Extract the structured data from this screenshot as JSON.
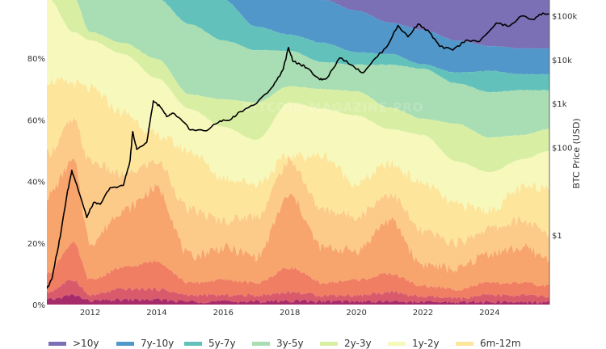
{
  "chart_data": {
    "type": "area",
    "title": "",
    "watermark": "BITCOIN MAGAZINE PRO",
    "x_ticks": [
      "2012",
      "2014",
      "2016",
      "2018",
      "2020",
      "2022",
      "2024"
    ],
    "x_tick_values": [
      2012,
      2014,
      2016,
      2018,
      2020,
      2022,
      2024
    ],
    "xlim": [
      2010.7,
      2025.8
    ],
    "y_left": {
      "ticks": [
        "0%",
        "20%",
        "40%",
        "60%",
        "80%"
      ],
      "tick_values": [
        0,
        20,
        40,
        60,
        80
      ],
      "ylim": [
        0,
        99
      ]
    },
    "y_right": {
      "label": "BTC Price (USD)",
      "scale": "log",
      "ticks": [
        "$1",
        "$100",
        "$1k",
        "$10k",
        "$100k"
      ],
      "tick_values": [
        1,
        100,
        1000,
        10000,
        100000
      ]
    },
    "legend": [
      {
        "label": ">10y",
        "color": "#7b6fb6"
      },
      {
        "label": "7y-10y",
        "color": "#5197c9"
      },
      {
        "label": "5y-7y",
        "color": "#62c2bb"
      },
      {
        "label": "3y-5y",
        "color": "#a9ddb3"
      },
      {
        "label": "2y-3y",
        "color": "#d8efa3"
      },
      {
        "label": "1y-2y",
        "color": "#f7f8bb"
      },
      {
        "label": "6m-12m",
        "color": "#fde69c"
      }
    ],
    "lower_band_colors": [
      "#fccb89",
      "#f8a56d",
      "#f07e63",
      "#d95b6b",
      "#a62b6b"
    ],
    "boundary_years": [
      2010.7,
      2011.5,
      2012,
      2013,
      2014,
      2015,
      2016,
      2017,
      2018,
      2019,
      2020,
      2021,
      2022,
      2023,
      2024,
      2025,
      2025.8
    ],
    "boundaries_pct": {
      "7y-10y_top": [
        100,
        100,
        100,
        100,
        100,
        100,
        100,
        100,
        100,
        99,
        95.5,
        91.6,
        89.2,
        85.8,
        84,
        83.2,
        83.2
      ],
      "5y-7y_top": [
        100,
        100,
        100,
        100,
        100,
        100,
        99,
        90.3,
        87.7,
        85,
        81.9,
        81.4,
        78,
        75.4,
        75.9,
        74.8,
        74.8
      ],
      "3y-5y_top": [
        100,
        100,
        100,
        100,
        99.5,
        91,
        85.8,
        82.7,
        82.4,
        78.7,
        77.9,
        77.9,
        76.6,
        71.9,
        69,
        69.6,
        69.6
      ],
      "2y-3y_top": [
        100,
        100,
        88.5,
        85,
        79.8,
        68.2,
        66.7,
        65.6,
        70.9,
        70,
        69.3,
        64,
        60.4,
        58.8,
        54.3,
        55.1,
        57
      ],
      "1y-2y_top": [
        100,
        88.5,
        85.8,
        81.4,
        73.5,
        63.5,
        57.7,
        53.5,
        65.6,
        63.5,
        61.4,
        57,
        55.1,
        46.5,
        43,
        47.2,
        49.9
      ],
      "6m-12m_top": [
        72.7,
        71.9,
        70,
        62.2,
        55.1,
        49.9,
        41.2,
        39.4,
        48.3,
        48.3,
        39.4,
        45.7,
        39.4,
        32.5,
        30.7,
        37.8,
        38.6
      ],
      "3m-6m_top": [
        49,
        59.6,
        46.5,
        42,
        46.5,
        30.7,
        27.3,
        28.9,
        46.5,
        30.7,
        28.9,
        36,
        23.6,
        20.2,
        24.7,
        27.3,
        22.8
      ],
      "1m-3m_top": [
        35.2,
        46.5,
        20.2,
        30.7,
        37.8,
        15.7,
        18.4,
        15.7,
        35.2,
        18.4,
        17.6,
        27.3,
        13.1,
        11.5,
        16.8,
        18.4,
        15
      ],
      "1w-1m_top": [
        10,
        20,
        8,
        12,
        14,
        7,
        8,
        7,
        12,
        7,
        8,
        10,
        6,
        5,
        7,
        7,
        6
      ],
      "1d-1w_top": [
        4,
        8,
        3,
        5,
        5,
        3,
        3,
        3,
        4,
        3,
        3,
        4,
        2.5,
        2,
        3,
        3,
        2.5
      ],
      "24h_top": [
        1.5,
        3,
        1.2,
        1.5,
        1.5,
        1,
        1,
        1,
        1.2,
        1,
        1,
        1,
        0.8,
        0.8,
        0.8,
        0.8,
        0.8
      ]
    },
    "price_series": {
      "name": "BTC Price",
      "color": "#000000",
      "points": [
        [
          2010.7,
          0.06
        ],
        [
          2010.85,
          0.1
        ],
        [
          2010.95,
          0.25
        ],
        [
          2011.1,
          0.9
        ],
        [
          2011.3,
          8
        ],
        [
          2011.45,
          30
        ],
        [
          2011.6,
          14
        ],
        [
          2011.9,
          2.5
        ],
        [
          2012.1,
          5.5
        ],
        [
          2012.3,
          5
        ],
        [
          2012.6,
          12
        ],
        [
          2013.0,
          13.5
        ],
        [
          2013.2,
          50
        ],
        [
          2013.28,
          230
        ],
        [
          2013.4,
          90
        ],
        [
          2013.7,
          130
        ],
        [
          2013.9,
          1150
        ],
        [
          2014.1,
          850
        ],
        [
          2014.3,
          500
        ],
        [
          2014.5,
          600
        ],
        [
          2014.8,
          380
        ],
        [
          2015.0,
          250
        ],
        [
          2015.5,
          240
        ],
        [
          2015.9,
          400
        ],
        [
          2016.2,
          420
        ],
        [
          2016.5,
          650
        ],
        [
          2017.0,
          1000
        ],
        [
          2017.5,
          2500
        ],
        [
          2017.8,
          6000
        ],
        [
          2017.96,
          19000
        ],
        [
          2018.1,
          9000
        ],
        [
          2018.3,
          8000
        ],
        [
          2018.5,
          6500
        ],
        [
          2018.9,
          3500
        ],
        [
          2019.1,
          3700
        ],
        [
          2019.5,
          11000
        ],
        [
          2019.9,
          7200
        ],
        [
          2020.2,
          5000
        ],
        [
          2020.5,
          9500
        ],
        [
          2020.9,
          19000
        ],
        [
          2021.25,
          60000
        ],
        [
          2021.55,
          33000
        ],
        [
          2021.85,
          65000
        ],
        [
          2022.2,
          42000
        ],
        [
          2022.5,
          20000
        ],
        [
          2022.9,
          16500
        ],
        [
          2023.3,
          28000
        ],
        [
          2023.7,
          26000
        ],
        [
          2024.2,
          68000
        ],
        [
          2024.6,
          58000
        ],
        [
          2024.95,
          98000
        ],
        [
          2025.3,
          83000
        ],
        [
          2025.6,
          115000
        ],
        [
          2025.8,
          108000
        ]
      ]
    }
  }
}
